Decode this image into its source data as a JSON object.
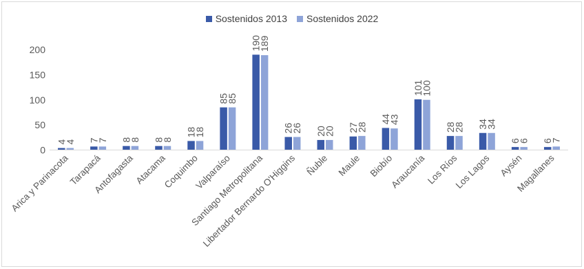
{
  "colors": {
    "s2013": "#3a5aa8",
    "s2022": "#8ea4d8",
    "axis": "#d9d9d9",
    "text": "#595959"
  },
  "chart_data": {
    "type": "bar",
    "categories": [
      "Arica y Parinacota",
      "Tarapacá",
      "Antofagasta",
      "Atacama",
      "Coquimbo",
      "Valparaíso",
      "Santiago Metropolitana",
      "Libertador Bernardo O'Higgins",
      "Ñuble",
      "Maule",
      "Biobío",
      "Araucanía",
      "Los Ríos",
      "Los Lagos",
      "Aysén",
      "Magallanes"
    ],
    "series": [
      {
        "name": "Sostenidos 2013",
        "values": [
          4,
          7,
          8,
          8,
          18,
          85,
          190,
          26,
          20,
          27,
          44,
          101,
          28,
          34,
          6,
          6
        ]
      },
      {
        "name": "Sostenidos 2022",
        "values": [
          4,
          7,
          8,
          8,
          18,
          85,
          189,
          26,
          20,
          28,
          43,
          100,
          28,
          34,
          6,
          7
        ]
      }
    ],
    "yticks": [
      "0",
      "50",
      "100",
      "150",
      "200"
    ],
    "ylim": [
      0,
      200
    ],
    "grid": false,
    "legend_position": "top"
  }
}
